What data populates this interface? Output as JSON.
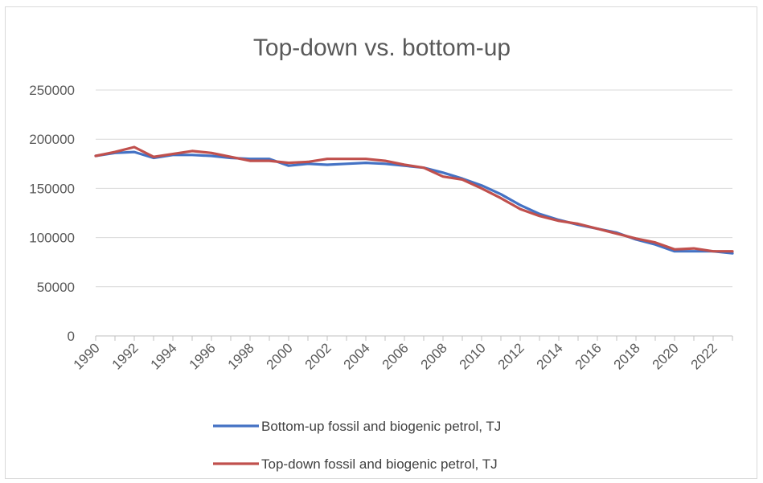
{
  "chart_data": {
    "type": "line",
    "title": "Top-down vs. bottom-up",
    "xlabel": "",
    "ylabel": "",
    "ylim": [
      0,
      250000
    ],
    "yticks": [
      "0",
      "50000",
      "100000",
      "150000",
      "200000",
      "250000"
    ],
    "xticks": [
      "1990",
      "1992",
      "1994",
      "1996",
      "1998",
      "2000",
      "2002",
      "2004",
      "2006",
      "2008",
      "2010",
      "2012",
      "2014",
      "2016",
      "2018",
      "2020",
      "2022"
    ],
    "x": [
      1990,
      1991,
      1992,
      1993,
      1994,
      1995,
      1996,
      1997,
      1998,
      1999,
      2000,
      2001,
      2002,
      2003,
      2004,
      2005,
      2006,
      2007,
      2008,
      2009,
      2010,
      2011,
      2012,
      2013,
      2014,
      2015,
      2016,
      2017,
      2018,
      2019,
      2020,
      2021,
      2022,
      2023
    ],
    "grid": "horizontal",
    "legend_position": "bottom",
    "series": [
      {
        "name": "Bottom-up fossil and biogenic petrol, TJ",
        "color": "#4472c4",
        "values": [
          183000,
          186000,
          187000,
          181000,
          184000,
          184000,
          183000,
          181000,
          180000,
          180000,
          173000,
          175000,
          174000,
          175000,
          176000,
          175000,
          173000,
          171000,
          166000,
          160000,
          153000,
          144000,
          133000,
          124000,
          118000,
          113000,
          109000,
          105000,
          98000,
          93000,
          86000,
          86000,
          86000,
          84000
        ]
      },
      {
        "name": "Top-down fossil and biogenic petrol, TJ",
        "color": "#c0504d",
        "values": [
          183000,
          187000,
          192000,
          182000,
          185000,
          188000,
          186000,
          182000,
          178000,
          178000,
          176000,
          177000,
          180000,
          180000,
          180000,
          178000,
          174000,
          171000,
          162000,
          159000,
          150000,
          140000,
          129000,
          122000,
          117000,
          114000,
          109000,
          104000,
          99000,
          95000,
          88000,
          89000,
          86000,
          86000
        ]
      }
    ]
  }
}
